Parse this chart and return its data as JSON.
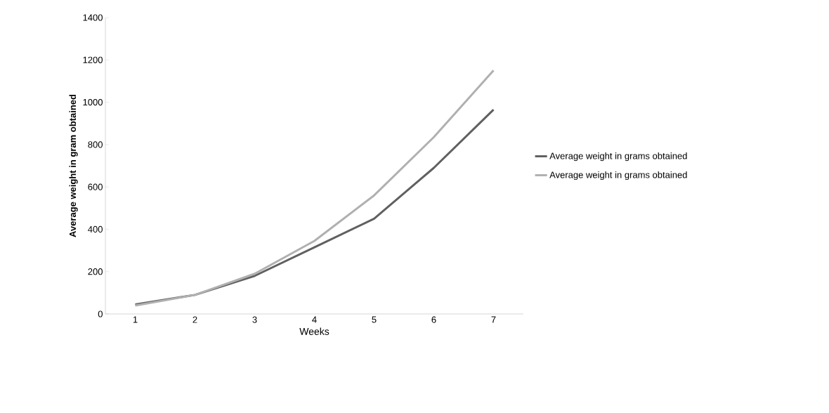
{
  "chart_data": {
    "type": "line",
    "xlabel": "Weeks",
    "ylabel": "Average weight in gram obtained",
    "categories": [
      "1",
      "2",
      "3",
      "4",
      "5",
      "6",
      "7"
    ],
    "series": [
      {
        "name": "Average weight in grams obtained",
        "color": "#606060",
        "values": [
          45,
          90,
          180,
          315,
          450,
          690,
          965
        ]
      },
      {
        "name": "Average weight in grams obtained",
        "color": "#b0b0b0",
        "values": [
          40,
          90,
          190,
          345,
          560,
          835,
          1150
        ]
      }
    ],
    "ylim": [
      0,
      1400
    ],
    "yticks": [
      0,
      200,
      400,
      600,
      800,
      1000,
      1200,
      1400
    ],
    "grid": false,
    "legend": "right",
    "marker": "none",
    "line_style": "solid"
  }
}
